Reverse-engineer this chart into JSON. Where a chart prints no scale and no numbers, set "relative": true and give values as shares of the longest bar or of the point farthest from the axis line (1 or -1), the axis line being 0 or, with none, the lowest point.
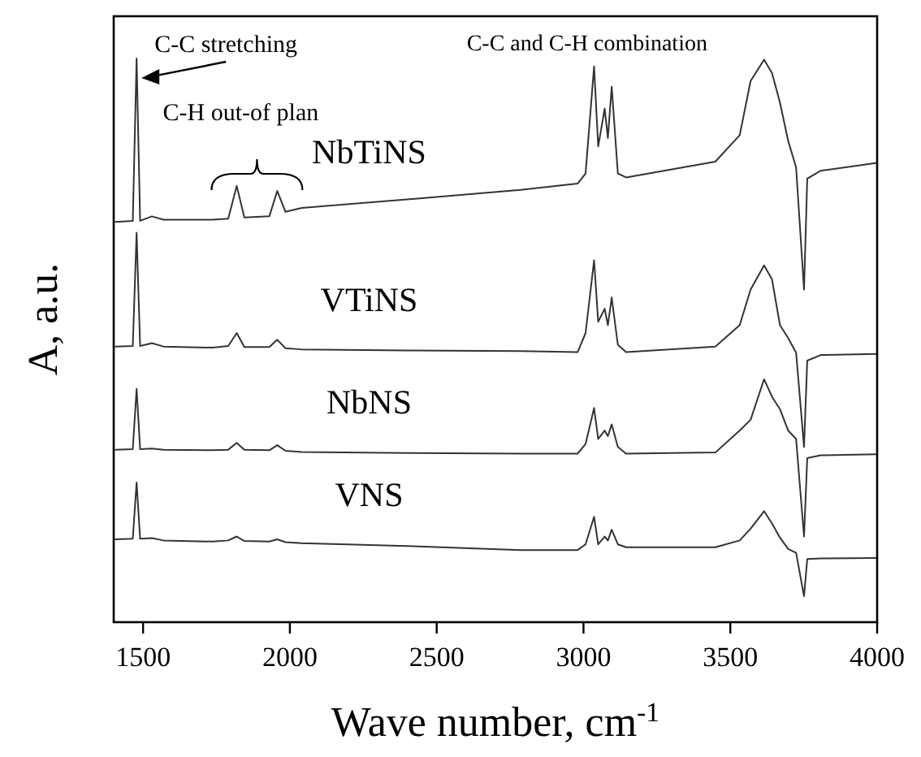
{
  "chart_data": {
    "type": "line",
    "relative": true,
    "xlabel": "Wave number, cm$^{-1}$",
    "ylabel": "A, a.u.",
    "xlim": [
      1400,
      4000
    ],
    "xticks": [
      1500,
      2000,
      2500,
      3000,
      3500,
      4000
    ],
    "tick_labels": "x",
    "grid": false,
    "marker": "none",
    "line_style": "solid",
    "x": [
      1404,
      1465,
      1478,
      1490,
      1530,
      1570,
      1736,
      1790,
      1819,
      1845,
      1930,
      1957,
      1985,
      2040,
      2399,
      2786,
      2980,
      3007,
      3036,
      3050,
      3072,
      3083,
      3096,
      3117,
      3145,
      3449,
      3532,
      3569,
      3615,
      3642,
      3669,
      3697,
      3724,
      3751,
      3762,
      3808,
      4000
    ],
    "series": [
      {
        "name": "NbTiNS",
        "color": "#333333",
        "values": [
          0.71,
          0.712,
          1.0,
          0.712,
          0.72,
          0.714,
          0.714,
          0.716,
          0.774,
          0.718,
          0.72,
          0.765,
          0.728,
          0.735,
          0.75,
          0.767,
          0.778,
          0.796,
          0.986,
          0.844,
          0.911,
          0.859,
          0.95,
          0.796,
          0.789,
          0.817,
          0.864,
          0.96,
          0.998,
          0.974,
          0.922,
          0.854,
          0.807,
          0.59,
          0.787,
          0.801,
          0.815
        ]
      },
      {
        "name": "VTiNS",
        "color": "#333333",
        "values": [
          0.489,
          0.49,
          0.691,
          0.49,
          0.495,
          0.489,
          0.487,
          0.49,
          0.513,
          0.488,
          0.488,
          0.501,
          0.486,
          0.484,
          0.482,
          0.481,
          0.479,
          0.513,
          0.642,
          0.533,
          0.556,
          0.527,
          0.576,
          0.492,
          0.479,
          0.489,
          0.527,
          0.59,
          0.633,
          0.608,
          0.527,
          0.504,
          0.478,
          0.311,
          0.464,
          0.474,
          0.476
        ]
      },
      {
        "name": "NbNS",
        "color": "#333333",
        "values": [
          0.306,
          0.307,
          0.414,
          0.307,
          0.308,
          0.306,
          0.305,
          0.306,
          0.318,
          0.306,
          0.305,
          0.314,
          0.304,
          0.302,
          0.3,
          0.299,
          0.299,
          0.316,
          0.38,
          0.325,
          0.34,
          0.33,
          0.351,
          0.311,
          0.299,
          0.301,
          0.34,
          0.359,
          0.431,
          0.4,
          0.378,
          0.34,
          0.325,
          0.152,
          0.291,
          0.296,
          0.298
        ]
      },
      {
        "name": "VNS",
        "color": "#333333",
        "values": [
          0.147,
          0.148,
          0.248,
          0.148,
          0.149,
          0.145,
          0.143,
          0.145,
          0.152,
          0.144,
          0.143,
          0.147,
          0.142,
          0.14,
          0.135,
          0.128,
          0.128,
          0.138,
          0.187,
          0.138,
          0.152,
          0.145,
          0.164,
          0.138,
          0.133,
          0.133,
          0.145,
          0.166,
          0.197,
          0.175,
          0.15,
          0.13,
          0.123,
          0.046,
          0.112,
          0.113,
          0.114
        ]
      }
    ],
    "annotations": [
      {
        "text": "C-C stretching",
        "x": 1478,
        "y": 0.98
      },
      "C-H out-of plan",
      "C-C and C-H combination"
    ]
  }
}
